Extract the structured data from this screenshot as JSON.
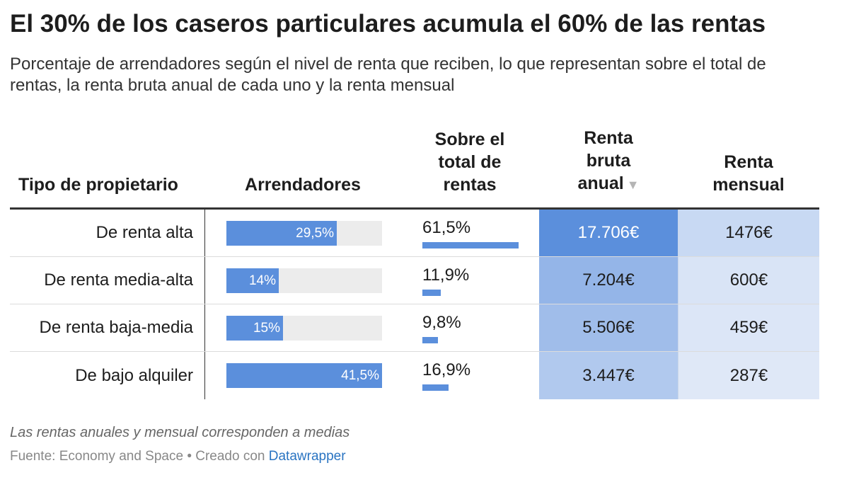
{
  "title": "El 30% de los caseros particulares acumula el 60% de las rentas",
  "subtitle": "Porcentaje de arrendadores según el nivel de renta que reciben, lo que representan sobre el total de rentas, la renta bruta anual de cada uno y la renta mensual",
  "headers": {
    "tipo": "Tipo de propietario",
    "arrendadores": "Arrendadores",
    "sobre_total": [
      "Sobre el",
      "total de",
      "rentas"
    ],
    "renta_bruta": [
      "Renta",
      "bruta",
      "anual"
    ],
    "renta_mensual": [
      "Renta",
      "mensual"
    ],
    "sort_indicator": "▼"
  },
  "colors": {
    "bar": "#5b8fdc",
    "bar_track": "#ececec",
    "heat_high": "#5b8fdc",
    "heat_low": "#ecf1fa"
  },
  "chart_data": {
    "type": "table",
    "columns": [
      "Tipo de propietario",
      "Arrendadores",
      "Sobre el total de rentas",
      "Renta bruta anual",
      "Renta mensual"
    ],
    "rows": [
      {
        "tipo": "De renta alta",
        "arrendadores": 29.5,
        "arrendadores_label": "29,5%",
        "sobre_total": 61.5,
        "sobre_total_label": "61,5%",
        "renta_bruta": 17706,
        "renta_bruta_label": "17.706€",
        "renta_mensual": 1476,
        "renta_mensual_label": "1476€"
      },
      {
        "tipo": "De renta media-alta",
        "arrendadores": 14,
        "arrendadores_label": "14%",
        "sobre_total": 11.9,
        "sobre_total_label": "11,9%",
        "renta_bruta": 7204,
        "renta_bruta_label": "7.204€",
        "renta_mensual": 600,
        "renta_mensual_label": "600€"
      },
      {
        "tipo": "De renta baja-media",
        "arrendadores": 15,
        "arrendadores_label": "15%",
        "sobre_total": 9.8,
        "sobre_total_label": "9,8%",
        "renta_bruta": 5506,
        "renta_bruta_label": "5.506€",
        "renta_mensual": 459,
        "renta_mensual_label": "459€"
      },
      {
        "tipo": "De bajo alquiler",
        "arrendadores": 41.5,
        "arrendadores_label": "41,5%",
        "sobre_total": 16.9,
        "sobre_total_label": "16,9%",
        "renta_bruta": 3447,
        "renta_bruta_label": "3.447€",
        "renta_mensual": 287,
        "renta_mensual_label": "287€"
      }
    ],
    "arrendadores_max": 41.5,
    "sobre_total_max": 61.5,
    "sorted_by": "Renta bruta anual"
  },
  "note": "Las rentas anuales y mensual corresponden a medias",
  "source": {
    "prefix": "Fuente: Economy and Space • Creado con ",
    "link": "Datawrapper"
  }
}
